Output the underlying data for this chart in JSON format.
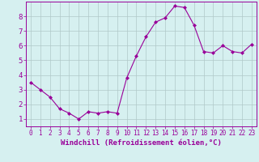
{
  "x": [
    0,
    1,
    2,
    3,
    4,
    5,
    6,
    7,
    8,
    9,
    10,
    11,
    12,
    13,
    14,
    15,
    16,
    17,
    18,
    19,
    20,
    21,
    22,
    23
  ],
  "y": [
    3.5,
    3.0,
    2.5,
    1.7,
    1.4,
    1.0,
    1.5,
    1.4,
    1.5,
    1.4,
    3.8,
    5.3,
    6.6,
    7.6,
    7.9,
    8.7,
    8.6,
    7.4,
    5.6,
    5.5,
    6.0,
    5.6,
    5.5,
    6.1
  ],
  "line_color": "#990099",
  "marker": "D",
  "marker_size": 2,
  "bg_color": "#d6f0f0",
  "grid_color": "#b0c8c8",
  "xlabel": "Windchill (Refroidissement éolien,°C)",
  "xlim_min": -0.5,
  "xlim_max": 23.5,
  "ylim_min": 0.5,
  "ylim_max": 9.0,
  "yticks": [
    1,
    2,
    3,
    4,
    5,
    6,
    7,
    8
  ],
  "xticks": [
    0,
    1,
    2,
    3,
    4,
    5,
    6,
    7,
    8,
    9,
    10,
    11,
    12,
    13,
    14,
    15,
    16,
    17,
    18,
    19,
    20,
    21,
    22,
    23
  ],
  "tick_color": "#990099",
  "label_color": "#990099",
  "axis_color": "#990099",
  "font_size_xlabel": 6.5,
  "font_size_ticks_x": 5.5,
  "font_size_ticks_y": 6.5,
  "linewidth": 0.8
}
